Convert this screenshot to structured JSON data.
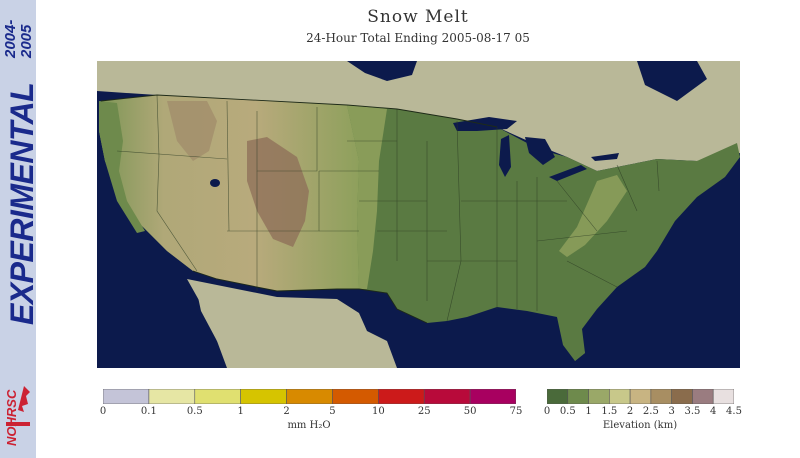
{
  "sidebar": {
    "year_top": "2004-",
    "year_bottom": "2005",
    "label": "EXPERIMENTAL",
    "logo_text": "NOHRSC"
  },
  "header": {
    "title": "Snow Melt",
    "subtitle": "24-Hour Total Ending 2005-08-17 05"
  },
  "melt_legend": {
    "unit": "mm H₂O",
    "ticks": [
      "0",
      "0.1",
      "0.5",
      "1",
      "2",
      "5",
      "10",
      "25",
      "50",
      "75"
    ],
    "colors": [
      "#c4c4d8",
      "#e6e6a4",
      "#e0e070",
      "#d6c400",
      "#d88a00",
      "#d45a00",
      "#cc1a1a",
      "#b80a3a",
      "#a80060"
    ]
  },
  "elevation_legend": {
    "unit": "Elevation (km)",
    "ticks": [
      "0",
      "0.5",
      "1",
      "1.5",
      "2",
      "2.5",
      "3",
      "3.5",
      "4",
      "4.5"
    ],
    "colors": [
      "#4a6a3a",
      "#6e8a4c",
      "#9aa868",
      "#c8c88a",
      "#c8b482",
      "#a88e62",
      "#8a6c4c",
      "#9a7c80",
      "#e8e0e0"
    ]
  },
  "colors": {
    "ocean": "#0c1a4c",
    "canada_mexico": "#b9b898",
    "lowland": "#5a7a42",
    "plains": "#7e9656",
    "highland": "#b4aa7a",
    "mountain": "#8e6e58",
    "sidebar_text": "#1a2a8c"
  }
}
